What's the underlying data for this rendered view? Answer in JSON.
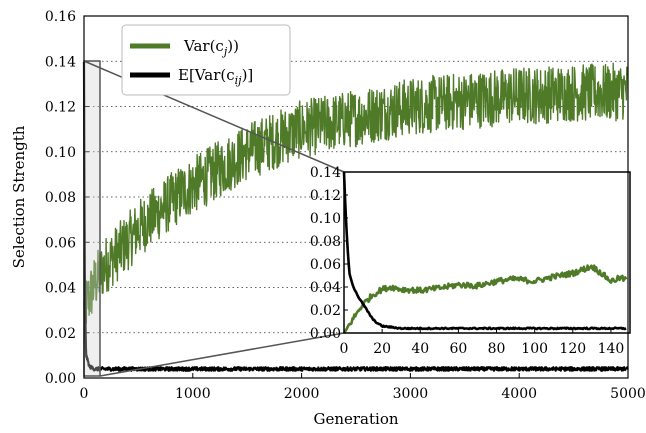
{
  "chart_data": [
    {
      "type": "line",
      "title": "",
      "xlabel": "Generation",
      "ylabel": "Selection Strength",
      "xlim": [
        0,
        5000
      ],
      "ylim": [
        0,
        0.16
      ],
      "xticks": [
        0,
        1000,
        2000,
        3000,
        4000,
        5000
      ],
      "yticks": [
        0.0,
        0.02,
        0.04,
        0.06,
        0.08,
        0.1,
        0.12,
        0.14,
        0.16
      ],
      "grid": "dotted horizontal",
      "legend_placement": "top-left",
      "series": [
        {
          "name": "Var(c_j))",
          "legend_label": "Var(c",
          "legend_sub": "j",
          "legend_suffix": "))",
          "color": "#4f7a28",
          "x": [
            0,
            100,
            200,
            300,
            400,
            500,
            600,
            700,
            800,
            900,
            1000,
            1100,
            1200,
            1300,
            1400,
            1500,
            1600,
            1700,
            1800,
            1900,
            2000,
            2200,
            2400,
            2600,
            2800,
            3000,
            3200,
            3400,
            3600,
            3800,
            4000,
            4200,
            4400,
            4600,
            4800,
            5000
          ],
          "y": [
            0.03,
            0.042,
            0.05,
            0.055,
            0.06,
            0.066,
            0.07,
            0.074,
            0.078,
            0.082,
            0.085,
            0.088,
            0.091,
            0.094,
            0.097,
            0.1,
            0.102,
            0.104,
            0.106,
            0.108,
            0.11,
            0.112,
            0.114,
            0.116,
            0.118,
            0.12,
            0.121,
            0.122,
            0.123,
            0.124,
            0.125,
            0.125,
            0.126,
            0.126,
            0.126,
            0.127
          ],
          "noise": 0.008
        },
        {
          "name": "E[Var(c_ij)]",
          "legend_label": "E[Var(c",
          "legend_sub": "ij",
          "legend_suffix": ")]",
          "color": "#000000",
          "x": [
            0,
            5,
            10,
            20,
            50,
            100,
            5000
          ],
          "y": [
            0.14,
            0.06,
            0.03,
            0.01,
            0.005,
            0.004,
            0.004
          ],
          "noise": 0.0008
        }
      ]
    },
    {
      "type": "line",
      "title": "",
      "xlabel": "",
      "ylabel": "",
      "xlim": [
        0,
        150
      ],
      "ylim": [
        0,
        0.14
      ],
      "xticks": [
        0,
        20,
        40,
        60,
        80,
        100,
        120,
        140
      ],
      "yticks": [
        0.0,
        0.02,
        0.04,
        0.06,
        0.08,
        0.1,
        0.12,
        0.14
      ],
      "grid": "none",
      "series": [
        {
          "name": "Var(c_j))",
          "color": "#4f7a28",
          "x": [
            0,
            2,
            5,
            10,
            15,
            20,
            25,
            30,
            40,
            50,
            60,
            70,
            80,
            90,
            100,
            110,
            120,
            125,
            130,
            135,
            140,
            145,
            148
          ],
          "y": [
            0.0,
            0.005,
            0.013,
            0.025,
            0.033,
            0.038,
            0.04,
            0.038,
            0.037,
            0.039,
            0.042,
            0.041,
            0.045,
            0.047,
            0.045,
            0.049,
            0.052,
            0.055,
            0.058,
            0.052,
            0.045,
            0.048,
            0.046
          ],
          "noise": 0.0025
        },
        {
          "name": "E[Var(c_ij)]",
          "color": "#000000",
          "x": [
            0,
            1,
            2,
            3,
            5,
            8,
            10,
            12,
            15,
            18,
            20,
            25,
            30,
            40,
            148
          ],
          "y": [
            0.14,
            0.1,
            0.07,
            0.05,
            0.04,
            0.03,
            0.025,
            0.02,
            0.012,
            0.008,
            0.006,
            0.005,
            0.004,
            0.004,
            0.004
          ],
          "noise": 0.0006
        }
      ]
    }
  ]
}
